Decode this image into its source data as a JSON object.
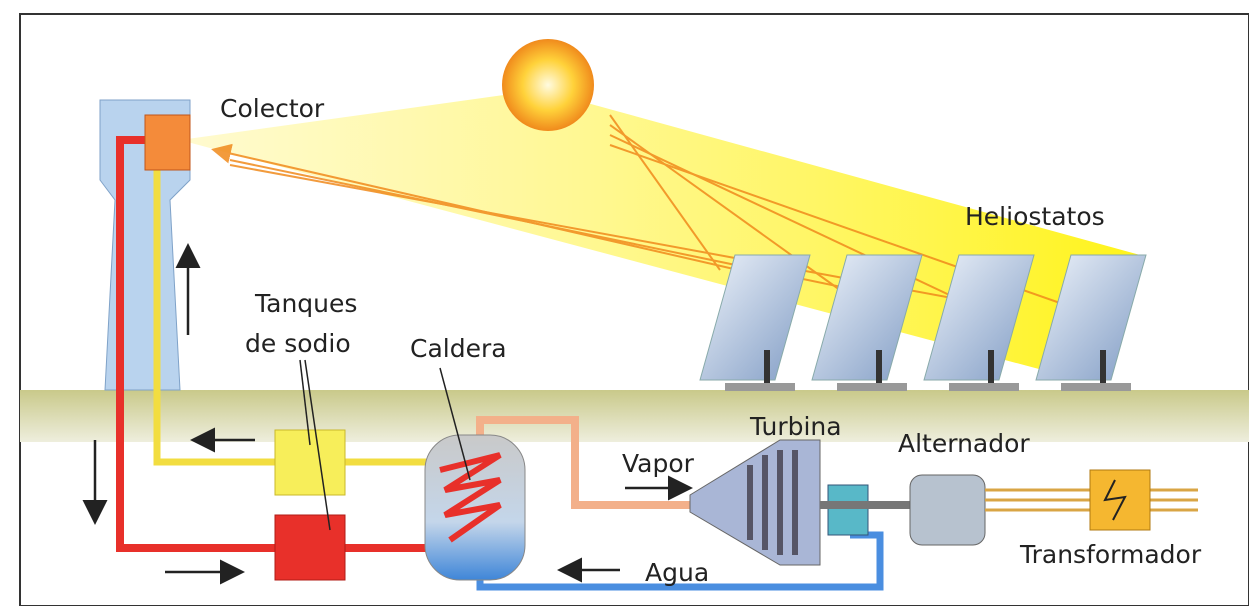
{
  "labels": {
    "collector": "Colector",
    "heliostats": "Heliostatos",
    "tanks": [
      "Tanques",
      "de sodio"
    ],
    "boiler": "Caldera",
    "turbine": "Turbina",
    "steam": "Vapor",
    "alternator": "Alternador",
    "water": "Agua",
    "transformer": "Transformador"
  }
}
